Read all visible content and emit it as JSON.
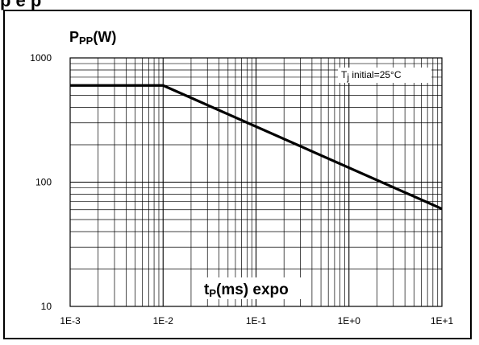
{
  "header": {
    "text": "p   e   p"
  },
  "chart_data": {
    "type": "line",
    "scale": {
      "x": "log",
      "y": "log"
    },
    "xlim": [
      0.001,
      10
    ],
    "ylim": [
      10,
      1000
    ],
    "grid": true,
    "x_ticks": [
      0.001,
      0.01,
      0.1,
      1,
      10
    ],
    "x_tick_labels": [
      "1E-3",
      "1E-2",
      "1E-1",
      "1E+0",
      "1E+1"
    ],
    "y_ticks": [
      10,
      100,
      1000
    ],
    "y_tick_labels": [
      "10",
      "100",
      "1000"
    ],
    "ylabel": {
      "main": "P",
      "sub": "PP",
      "unit": "(W)"
    },
    "xlabel": {
      "main": "t",
      "sub": "P",
      "rest": "(ms) expo"
    },
    "annotation": {
      "prefix": "T",
      "sub": "j",
      "rest": " initial=25°C"
    },
    "series": [
      {
        "x": [
          0.001,
          0.01,
          10
        ],
        "y": [
          600,
          600,
          61
        ]
      }
    ]
  }
}
